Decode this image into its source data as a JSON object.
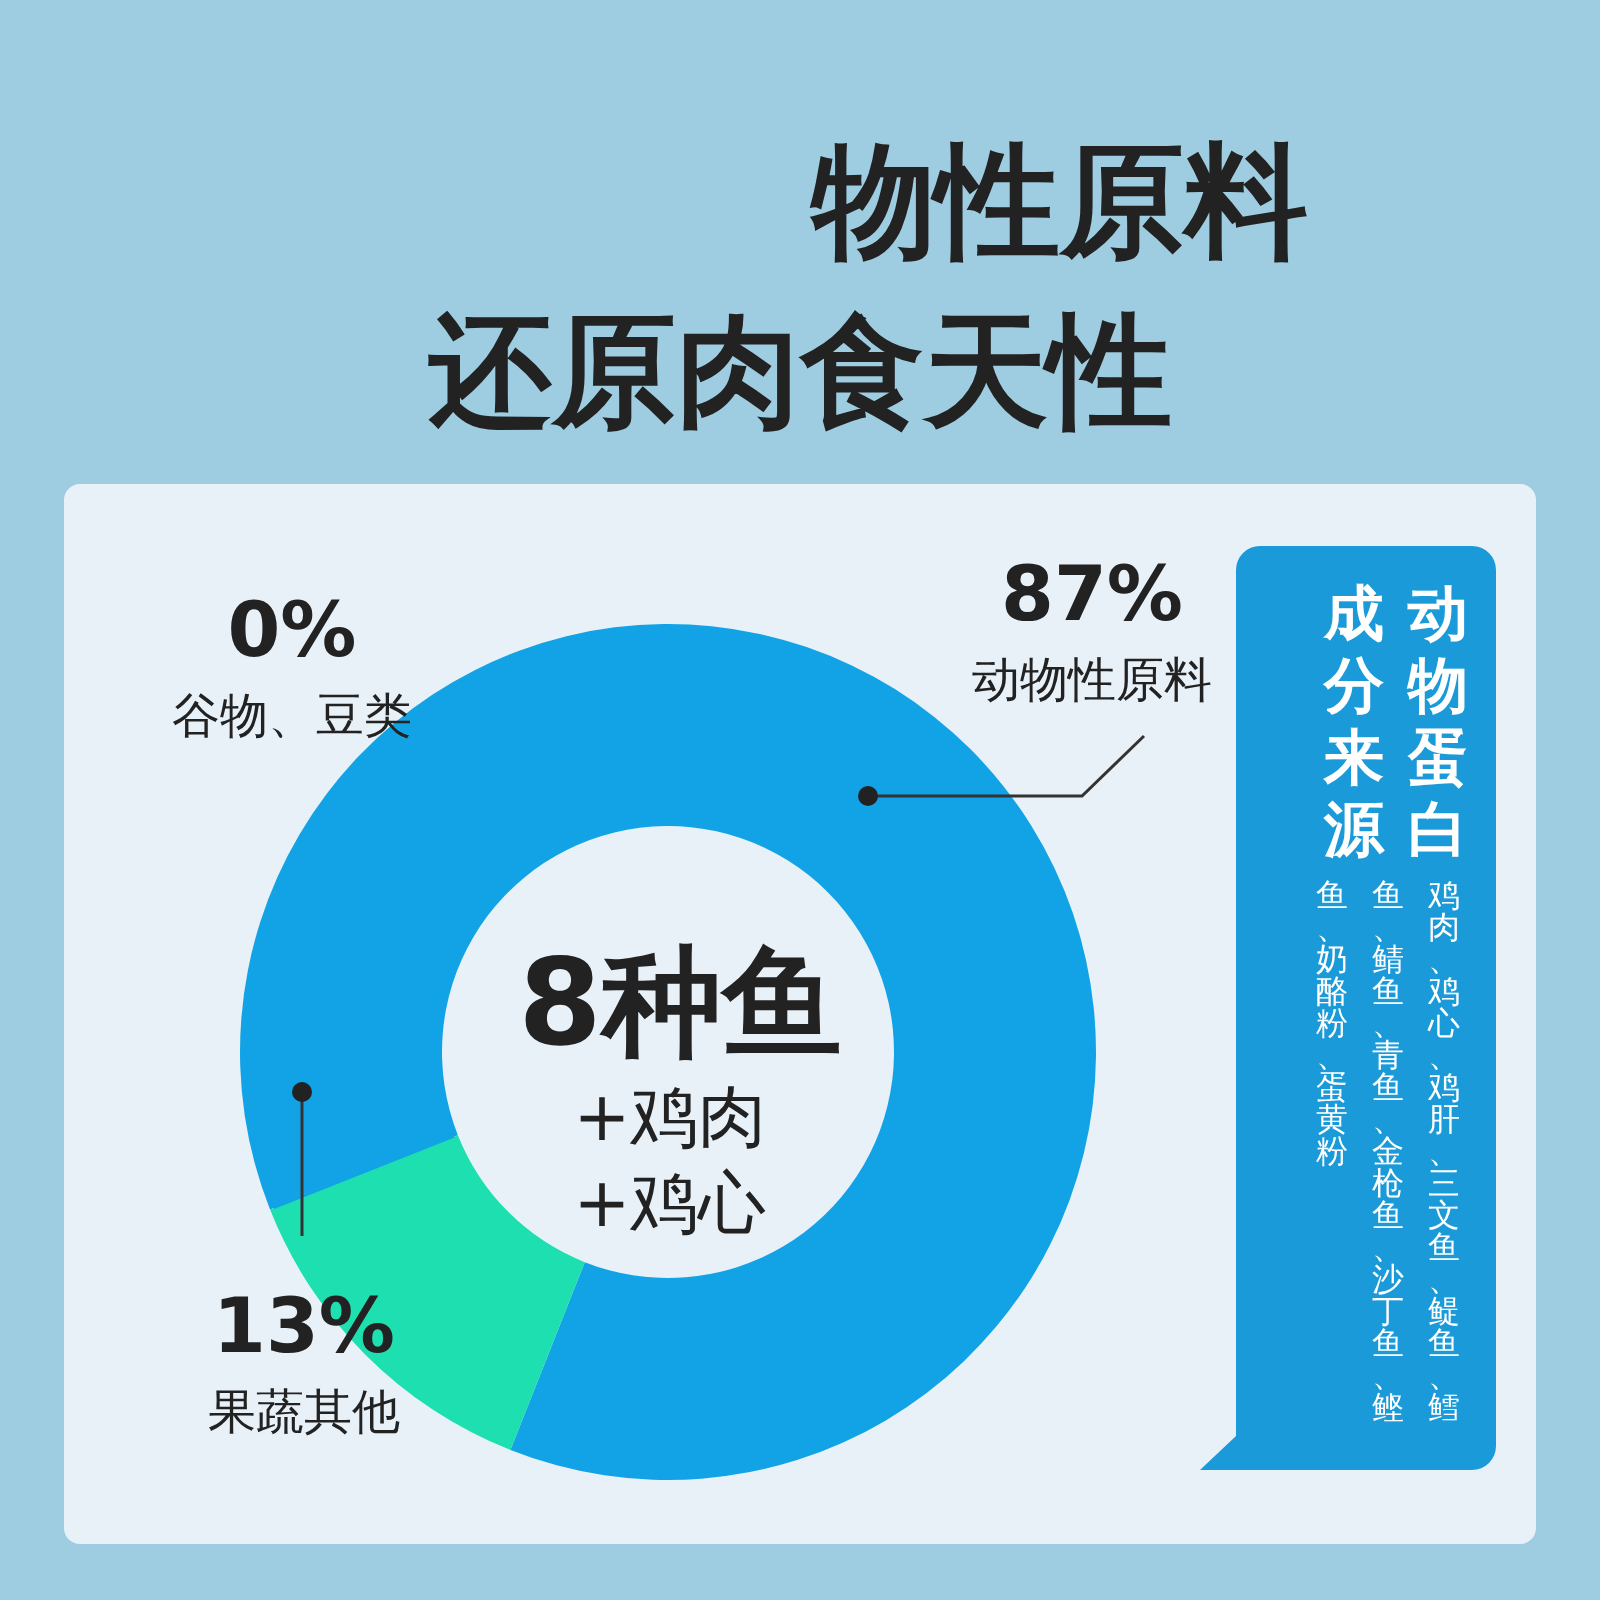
{
  "chart_data": {
    "type": "donut",
    "title": "物性原料",
    "subtitle": "还原肉食天性",
    "categories": [
      "动物性原料",
      "果蔬其他",
      "谷物、豆类"
    ],
    "values": [
      87,
      13,
      0
    ],
    "colors": [
      "#12a3e6",
      "#1ddfb0",
      "#12a3e6"
    ],
    "value_labels": [
      "87%",
      "13%",
      "0%"
    ],
    "annotations": [
      "8种鱼",
      "+鸡肉",
      "+鸡心",
      "动物蛋白",
      "成分来源",
      "鸡肉、鸡心、鸡肝、三文鱼、鳀鱼、鳕",
      "鱼、鲭鱼、青鱼、金枪鱼、沙丁鱼、鲣",
      "鱼、奶酪粉、蛋黄粉"
    ]
  }
}
